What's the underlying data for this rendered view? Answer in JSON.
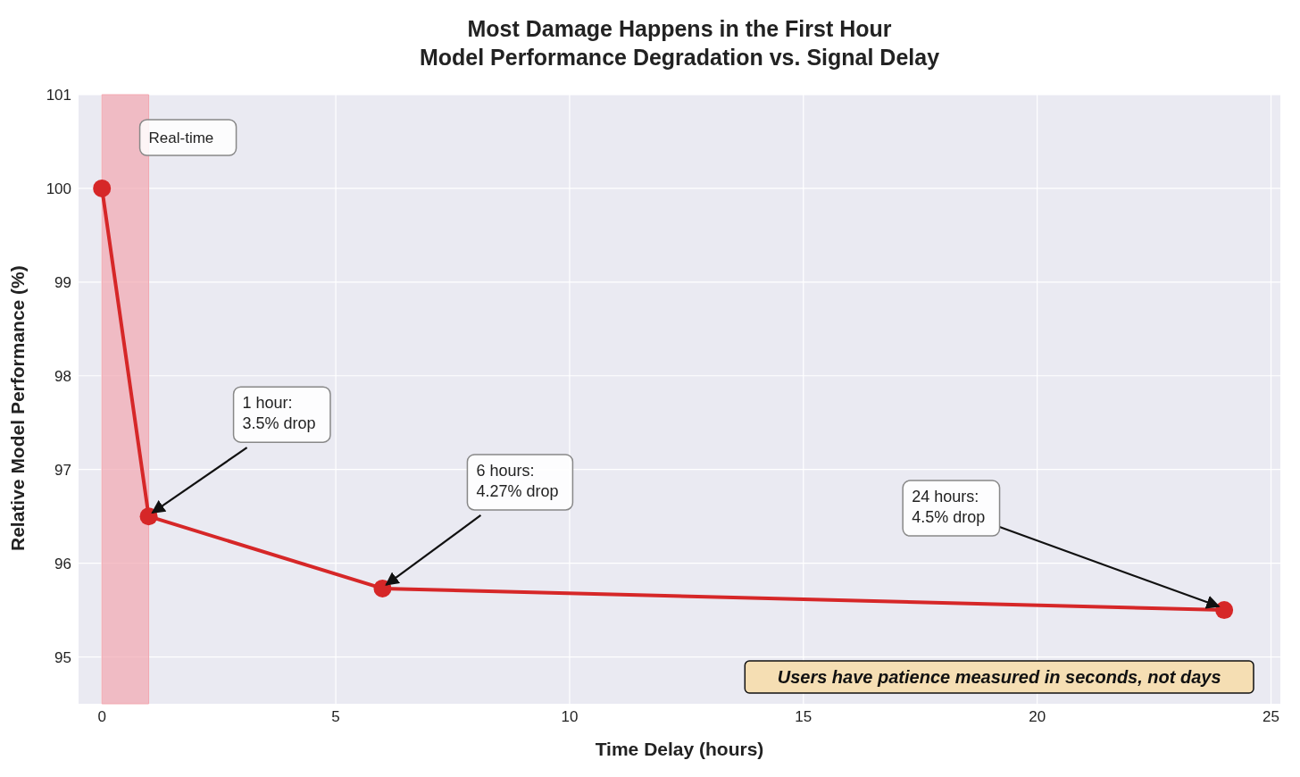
{
  "chart_data": {
    "type": "line",
    "title": "Most Damage Happens in the First Hour\nModel Performance Degradation vs. Signal Delay",
    "xlabel": "Time Delay (hours)",
    "ylabel": "Relative Model Performance (%)",
    "x": [
      0,
      1,
      6,
      24
    ],
    "series": [
      {
        "color": "#d62728",
        "values": [
          100,
          96.5,
          95.73,
          95.5
        ]
      }
    ],
    "xlim": [
      -0.5,
      25.2
    ],
    "xticks": [
      0,
      5,
      10,
      15,
      20,
      25
    ],
    "ylim": [
      94.5,
      101
    ],
    "yticks": [
      95,
      96,
      97,
      98,
      99,
      100,
      101
    ],
    "grid": true,
    "marker": "circle",
    "line_style": "solid",
    "bands": [
      {
        "axis": "x",
        "from": 0,
        "to": 1,
        "label": "Real-time",
        "color": "#f2a7b0"
      }
    ],
    "annotations": [
      {
        "text": "1 hour:\n3.5% drop",
        "x": 1,
        "y": 96.5
      },
      {
        "text": "6 hours:\n4.27% drop",
        "x": 6,
        "y": 95.73
      },
      {
        "text": "24 hours:\n4.5% drop",
        "x": 24,
        "y": 95.5
      },
      "Users have patience measured in seconds, not days"
    ]
  }
}
